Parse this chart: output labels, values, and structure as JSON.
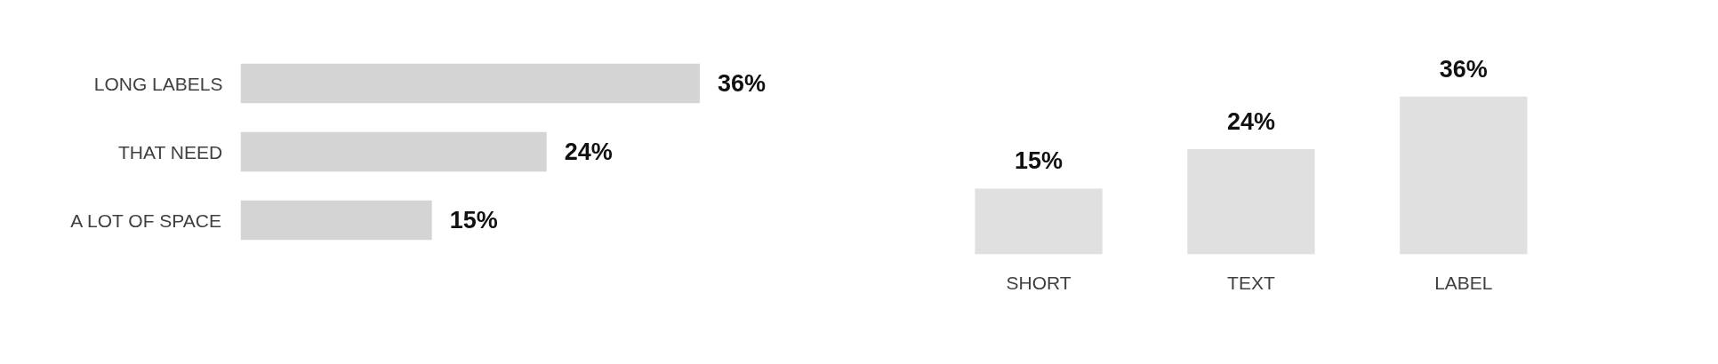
{
  "chart_data": [
    {
      "type": "bar",
      "orientation": "horizontal",
      "categories": [
        "LONG LABELS",
        "THAT NEED",
        "A LOT OF SPACE"
      ],
      "values": [
        36,
        24,
        15
      ],
      "value_labels": [
        "36%",
        "24%",
        "15%"
      ],
      "color": "#d4d4d4"
    },
    {
      "type": "bar",
      "categories": [
        "SHORT",
        "TEXT",
        "LABEL"
      ],
      "values": [
        15,
        24,
        36
      ],
      "value_labels": [
        "15%",
        "24%",
        "36%"
      ],
      "color": "#e0e0e0"
    }
  ]
}
